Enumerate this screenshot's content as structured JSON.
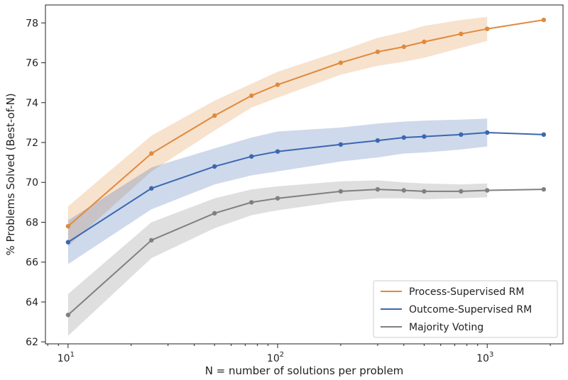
{
  "chart_data": {
    "type": "line",
    "xscale": "log",
    "xlim": [
      7.8,
      2300
    ],
    "ylim": [
      61.9,
      78.9
    ],
    "xlabel": "N = number of solutions per problem",
    "ylabel": "% Problems Solved (Best-of-N)",
    "xticks": [
      {
        "value": 10,
        "base": "10",
        "exp": "1"
      },
      {
        "value": 100,
        "base": "10",
        "exp": "2"
      },
      {
        "value": 1000,
        "base": "10",
        "exp": "3"
      }
    ],
    "yticks": [
      62,
      64,
      66,
      68,
      70,
      72,
      74,
      76,
      78
    ],
    "legend_position": "lower-right",
    "grid": false,
    "series": [
      {
        "name": "Process-Supervised RM",
        "color": "#e08a3c",
        "x": [
          10,
          25,
          50,
          75,
          100,
          200,
          300,
          400,
          500,
          750,
          1000,
          1860
        ],
        "y": [
          67.8,
          71.45,
          73.35,
          74.35,
          74.9,
          76.0,
          76.55,
          76.8,
          77.05,
          77.45,
          77.7,
          78.15
        ],
        "band_upper": [
          68.8,
          72.35,
          74.1,
          74.95,
          75.55,
          76.6,
          77.25,
          77.55,
          77.85,
          78.15,
          78.3,
          null
        ],
        "band_lower": [
          66.8,
          70.55,
          72.6,
          73.75,
          74.25,
          75.4,
          75.85,
          76.05,
          76.25,
          76.75,
          77.1,
          null
        ]
      },
      {
        "name": "Outcome-Supervised RM",
        "color": "#3b67b0",
        "x": [
          10,
          25,
          50,
          75,
          100,
          200,
          300,
          400,
          500,
          750,
          1000,
          1860
        ],
        "y": [
          67.0,
          69.7,
          70.8,
          71.3,
          71.55,
          71.9,
          72.1,
          72.25,
          72.3,
          72.4,
          72.5,
          72.4
        ],
        "band_upper": [
          68.1,
          70.75,
          71.7,
          72.25,
          72.55,
          72.75,
          72.95,
          73.05,
          73.1,
          73.15,
          73.2,
          null
        ],
        "band_lower": [
          65.9,
          68.65,
          69.9,
          70.35,
          70.55,
          71.05,
          71.25,
          71.45,
          71.5,
          71.65,
          71.8,
          null
        ]
      },
      {
        "name": "Majority Voting",
        "color": "#808080",
        "x": [
          10,
          25,
          50,
          75,
          100,
          200,
          300,
          400,
          500,
          750,
          1000,
          1860
        ],
        "y": [
          63.35,
          67.1,
          68.45,
          69.0,
          69.2,
          69.55,
          69.65,
          69.6,
          69.55,
          69.55,
          69.6,
          69.65
        ],
        "band_upper": [
          64.4,
          68.0,
          69.2,
          69.65,
          69.8,
          70.05,
          70.1,
          70.0,
          69.95,
          69.9,
          69.95,
          null
        ],
        "band_lower": [
          62.3,
          66.2,
          67.7,
          68.35,
          68.6,
          69.05,
          69.2,
          69.2,
          69.15,
          69.2,
          69.25,
          null
        ]
      }
    ]
  }
}
